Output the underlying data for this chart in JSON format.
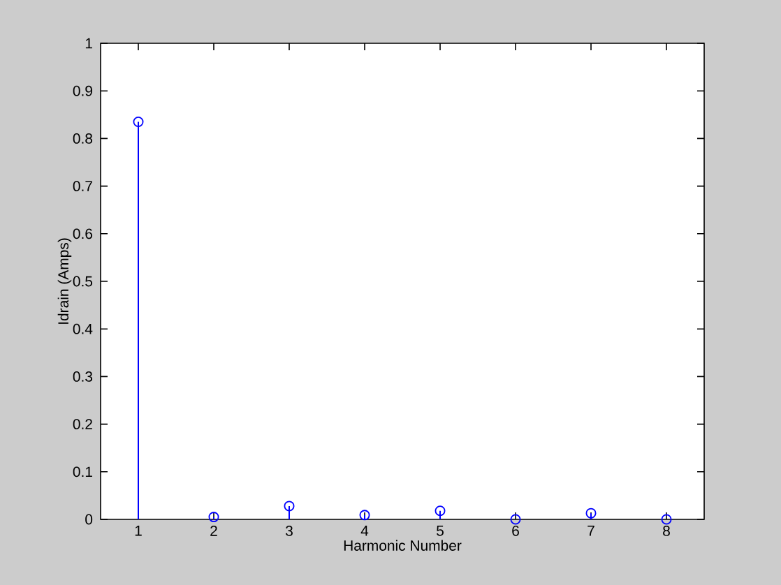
{
  "chart_data": {
    "type": "lollipop",
    "xlabel": "Harmonic Number",
    "ylabel": "Idrain (Amps)",
    "x": [
      1,
      2,
      3,
      4,
      5,
      6,
      7,
      8
    ],
    "values": [
      0.835,
      0.005,
      0.028,
      0.009,
      0.018,
      0,
      0.013,
      0
    ],
    "color": "#0000ff",
    "marker": "circle",
    "xlim": [
      0.5,
      8.5
    ],
    "xticks": [
      1,
      2,
      3,
      4,
      5,
      6,
      7,
      8
    ],
    "ylim": [
      0,
      1
    ],
    "yticks": [
      0,
      0.1,
      0.2,
      0.3,
      0.4,
      0.5,
      0.6,
      0.7,
      0.8,
      0.9,
      1
    ]
  }
}
